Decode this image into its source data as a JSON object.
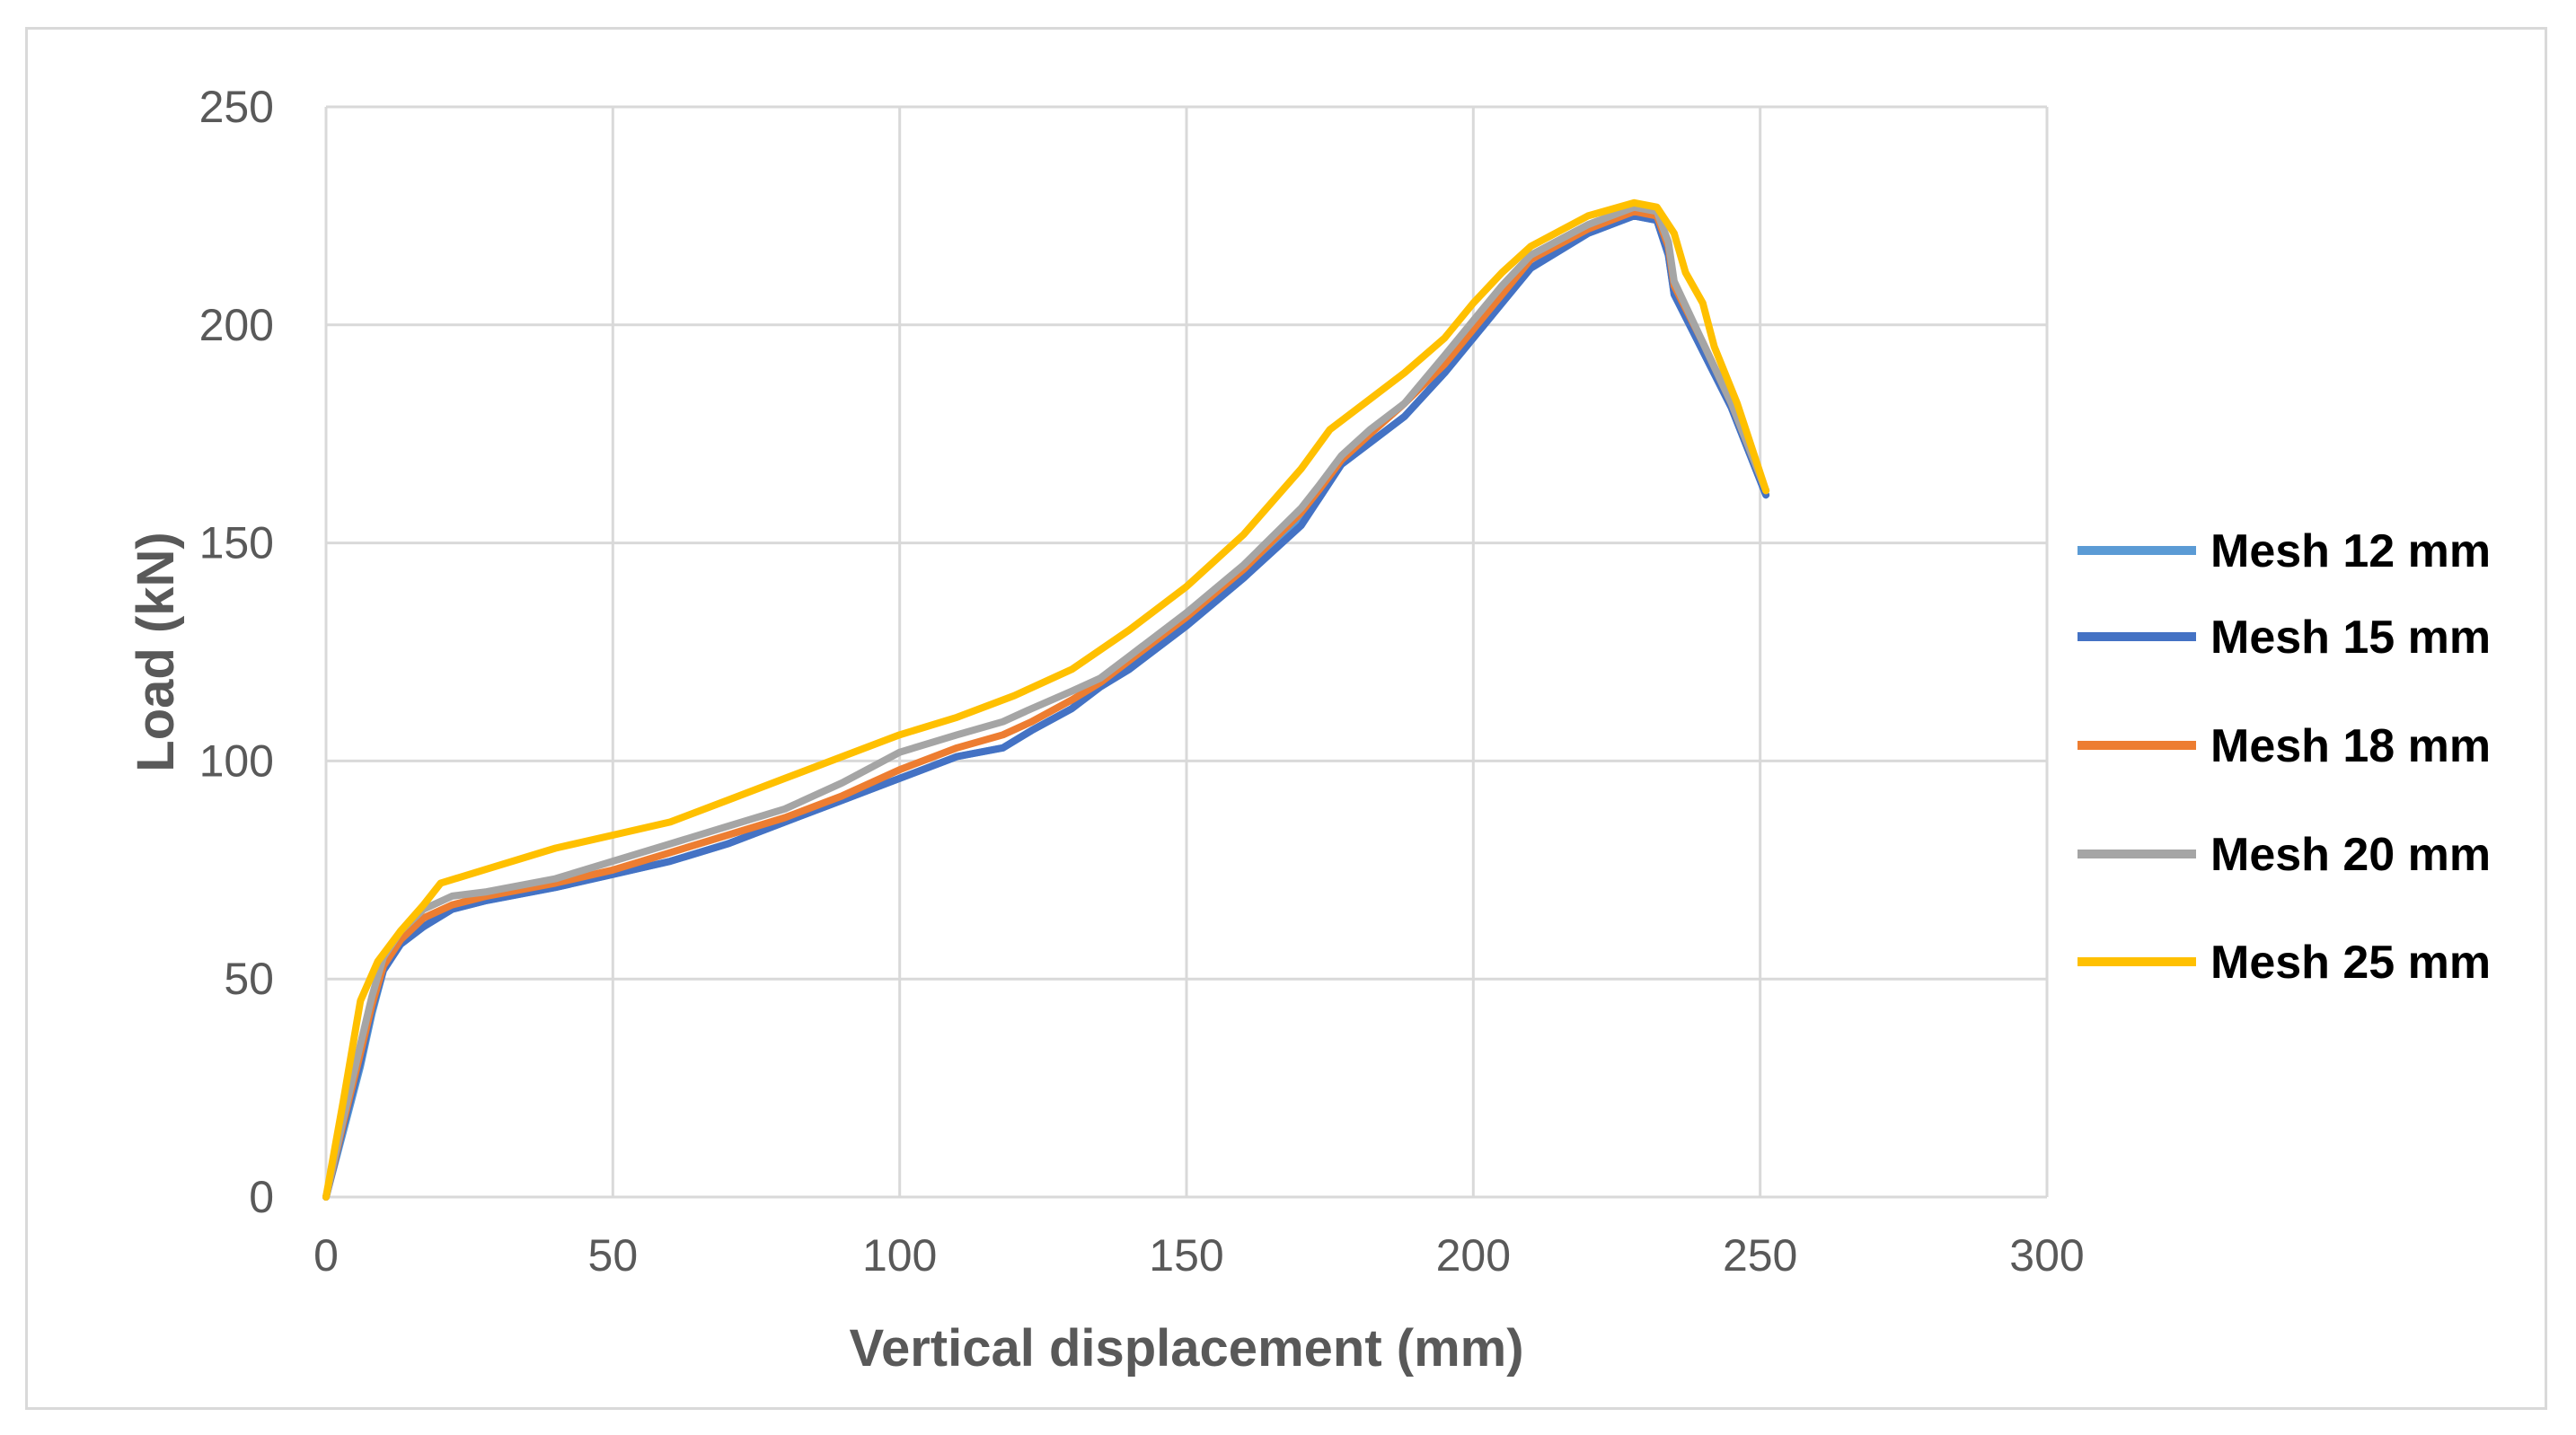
{
  "chart_data": {
    "type": "line",
    "title": "",
    "xlabel": "Vertical displacement (mm)",
    "ylabel": "Load (kN)",
    "xlim": [
      0,
      300
    ],
    "ylim": [
      0,
      250
    ],
    "x_ticks": [
      "0",
      "50",
      "100",
      "150",
      "200",
      "250",
      "300"
    ],
    "y_ticks": [
      "0",
      "50",
      "100",
      "150",
      "200",
      "250"
    ],
    "grid": true,
    "legend_position": "right",
    "series": [
      {
        "name": "Mesh 12 mm",
        "color": "#5B9BD5",
        "points": [
          [
            0,
            0
          ],
          [
            3,
            15
          ],
          [
            6,
            30
          ],
          [
            8,
            42
          ],
          [
            10,
            52
          ],
          [
            13,
            58
          ],
          [
            17,
            62
          ],
          [
            22,
            66
          ],
          [
            28,
            68
          ],
          [
            40,
            71
          ],
          [
            50,
            74
          ],
          [
            60,
            77
          ],
          [
            70,
            81
          ],
          [
            80,
            86
          ],
          [
            90,
            91
          ],
          [
            100,
            96
          ],
          [
            110,
            101
          ],
          [
            118,
            103
          ],
          [
            123,
            107
          ],
          [
            130,
            112
          ],
          [
            135,
            117
          ],
          [
            140,
            121
          ],
          [
            150,
            131
          ],
          [
            160,
            142
          ],
          [
            170,
            155
          ],
          [
            173,
            160
          ],
          [
            177,
            168
          ],
          [
            182,
            173
          ],
          [
            188,
            179
          ],
          [
            195,
            189
          ],
          [
            200,
            197
          ],
          [
            205,
            205
          ],
          [
            210,
            213
          ],
          [
            220,
            221
          ],
          [
            228,
            225
          ],
          [
            232,
            224
          ],
          [
            234,
            216
          ],
          [
            235,
            207
          ],
          [
            240,
            194
          ],
          [
            245,
            181
          ],
          [
            251,
            161
          ]
        ]
      },
      {
        "name": "Mesh 15 mm",
        "color": "#4472C4",
        "points": [
          [
            0,
            0
          ],
          [
            3,
            16
          ],
          [
            6,
            31
          ],
          [
            8,
            43
          ],
          [
            10,
            52
          ],
          [
            13,
            58
          ],
          [
            17,
            62
          ],
          [
            22,
            66
          ],
          [
            28,
            68
          ],
          [
            40,
            71
          ],
          [
            50,
            74
          ],
          [
            60,
            77
          ],
          [
            70,
            81
          ],
          [
            80,
            86
          ],
          [
            90,
            91
          ],
          [
            100,
            96
          ],
          [
            110,
            101
          ],
          [
            118,
            103
          ],
          [
            123,
            107
          ],
          [
            130,
            112
          ],
          [
            135,
            117
          ],
          [
            140,
            121
          ],
          [
            150,
            131
          ],
          [
            160,
            142
          ],
          [
            170,
            154
          ],
          [
            173,
            160
          ],
          [
            177,
            168
          ],
          [
            182,
            173
          ],
          [
            188,
            179
          ],
          [
            195,
            189
          ],
          [
            200,
            197
          ],
          [
            205,
            205
          ],
          [
            210,
            213
          ],
          [
            220,
            221
          ],
          [
            228,
            225
          ],
          [
            232,
            224
          ],
          [
            234,
            216
          ],
          [
            235,
            207
          ],
          [
            240,
            194
          ],
          [
            245,
            181
          ],
          [
            251,
            161
          ]
        ]
      },
      {
        "name": "Mesh 18 mm",
        "color": "#ED7D31",
        "points": [
          [
            0,
            0
          ],
          [
            3,
            17
          ],
          [
            6,
            33
          ],
          [
            8,
            44
          ],
          [
            10,
            53
          ],
          [
            13,
            59
          ],
          [
            17,
            64
          ],
          [
            22,
            67
          ],
          [
            28,
            69
          ],
          [
            40,
            72
          ],
          [
            50,
            75
          ],
          [
            60,
            79
          ],
          [
            70,
            83
          ],
          [
            80,
            87
          ],
          [
            90,
            92
          ],
          [
            100,
            98
          ],
          [
            110,
            103
          ],
          [
            118,
            106
          ],
          [
            123,
            109
          ],
          [
            130,
            114
          ],
          [
            135,
            118
          ],
          [
            140,
            123
          ],
          [
            150,
            133
          ],
          [
            160,
            144
          ],
          [
            170,
            157
          ],
          [
            173,
            162
          ],
          [
            177,
            169
          ],
          [
            182,
            175
          ],
          [
            188,
            182
          ],
          [
            195,
            191
          ],
          [
            200,
            199
          ],
          [
            205,
            207
          ],
          [
            210,
            215
          ],
          [
            220,
            222
          ],
          [
            228,
            226
          ],
          [
            232,
            225
          ],
          [
            234,
            218
          ],
          [
            235,
            209
          ],
          [
            240,
            196
          ],
          [
            245,
            182
          ],
          [
            251,
            162
          ]
        ]
      },
      {
        "name": "Mesh 20 mm",
        "color": "#A5A5A5",
        "points": [
          [
            0,
            0
          ],
          [
            3,
            18
          ],
          [
            6,
            35
          ],
          [
            8,
            46
          ],
          [
            10,
            55
          ],
          [
            13,
            61
          ],
          [
            17,
            66
          ],
          [
            22,
            69
          ],
          [
            28,
            70
          ],
          [
            40,
            73
          ],
          [
            50,
            77
          ],
          [
            60,
            81
          ],
          [
            70,
            85
          ],
          [
            80,
            89
          ],
          [
            90,
            95
          ],
          [
            100,
            102
          ],
          [
            110,
            106
          ],
          [
            118,
            109
          ],
          [
            123,
            112
          ],
          [
            130,
            116
          ],
          [
            135,
            119
          ],
          [
            140,
            124
          ],
          [
            150,
            134
          ],
          [
            160,
            145
          ],
          [
            170,
            158
          ],
          [
            173,
            163
          ],
          [
            177,
            170
          ],
          [
            182,
            176
          ],
          [
            188,
            182
          ],
          [
            195,
            193
          ],
          [
            200,
            201
          ],
          [
            205,
            209
          ],
          [
            210,
            216
          ],
          [
            220,
            223
          ],
          [
            228,
            227
          ],
          [
            232,
            226
          ],
          [
            234,
            219
          ],
          [
            235,
            210
          ],
          [
            240,
            196
          ],
          [
            245,
            182
          ],
          [
            251,
            162
          ]
        ]
      },
      {
        "name": "Mesh 25 mm",
        "color": "#FFC000",
        "points": [
          [
            0,
            0
          ],
          [
            3,
            22
          ],
          [
            6,
            45
          ],
          [
            9,
            54
          ],
          [
            13,
            61
          ],
          [
            17,
            67
          ],
          [
            20,
            72
          ],
          [
            25,
            74
          ],
          [
            30,
            76
          ],
          [
            40,
            80
          ],
          [
            50,
            83
          ],
          [
            60,
            86
          ],
          [
            70,
            91
          ],
          [
            80,
            96
          ],
          [
            90,
            101
          ],
          [
            100,
            106
          ],
          [
            110,
            110
          ],
          [
            120,
            115
          ],
          [
            130,
            121
          ],
          [
            140,
            130
          ],
          [
            150,
            140
          ],
          [
            160,
            152
          ],
          [
            170,
            167
          ],
          [
            175,
            176
          ],
          [
            180,
            181
          ],
          [
            188,
            189
          ],
          [
            195,
            197
          ],
          [
            200,
            205
          ],
          [
            205,
            212
          ],
          [
            210,
            218
          ],
          [
            220,
            225
          ],
          [
            228,
            228
          ],
          [
            232,
            227
          ],
          [
            235,
            221
          ],
          [
            237,
            212
          ],
          [
            240,
            205
          ],
          [
            242,
            195
          ],
          [
            246,
            182
          ],
          [
            251,
            162
          ]
        ]
      }
    ]
  }
}
